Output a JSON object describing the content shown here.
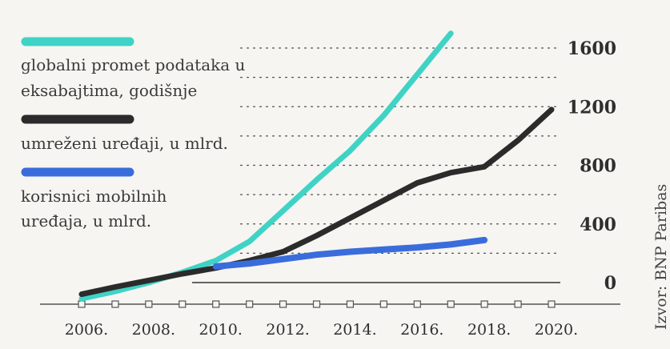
{
  "chart_data": {
    "type": "line",
    "x": [
      2006,
      2007,
      2008,
      2009,
      2010,
      2011,
      2012,
      2013,
      2014,
      2015,
      2016,
      2017,
      2018,
      2019,
      2020
    ],
    "xticks": [
      "2006.",
      "2008.",
      "2010.",
      "2012.",
      "2014.",
      "2016.",
      "2018.",
      "2020."
    ],
    "yticks": [
      "0",
      "400",
      "800",
      "1200",
      "1600"
    ],
    "ylim": [
      -120,
      1720
    ],
    "grid": "dashed horizontal",
    "legend_placement": "top-left",
    "source": "Izvor: BNP Paribas",
    "series": [
      {
        "name": "globalni promet podataka u eksabajtima, godišnje",
        "color": "#3fd3c6",
        "x": [
          2006,
          2007,
          2008,
          2009,
          2010,
          2011,
          2012,
          2013,
          2014,
          2015,
          2016,
          2017
        ],
        "values": [
          -110,
          -60,
          0,
          70,
          150,
          280,
          490,
          700,
          900,
          1140,
          1420,
          1700
        ]
      },
      {
        "name": "umreženi uređaji, u mlrd.",
        "color": "#2b2b2b",
        "x": [
          2006,
          2007,
          2008,
          2009,
          2010,
          2011,
          2012,
          2013,
          2014,
          2015,
          2016,
          2017,
          2018,
          2019,
          2020
        ],
        "values": [
          -80,
          -30,
          15,
          60,
          100,
          150,
          210,
          320,
          440,
          560,
          680,
          750,
          790,
          970,
          1180
        ]
      },
      {
        "name": "korisnici mobilnih uređaja, u mlrd.",
        "color": "#3a6ddb",
        "x": [
          2010,
          2011,
          2012,
          2013,
          2014,
          2015,
          2016,
          2017,
          2018
        ],
        "values": [
          110,
          130,
          160,
          190,
          210,
          225,
          240,
          260,
          290
        ]
      }
    ]
  }
}
